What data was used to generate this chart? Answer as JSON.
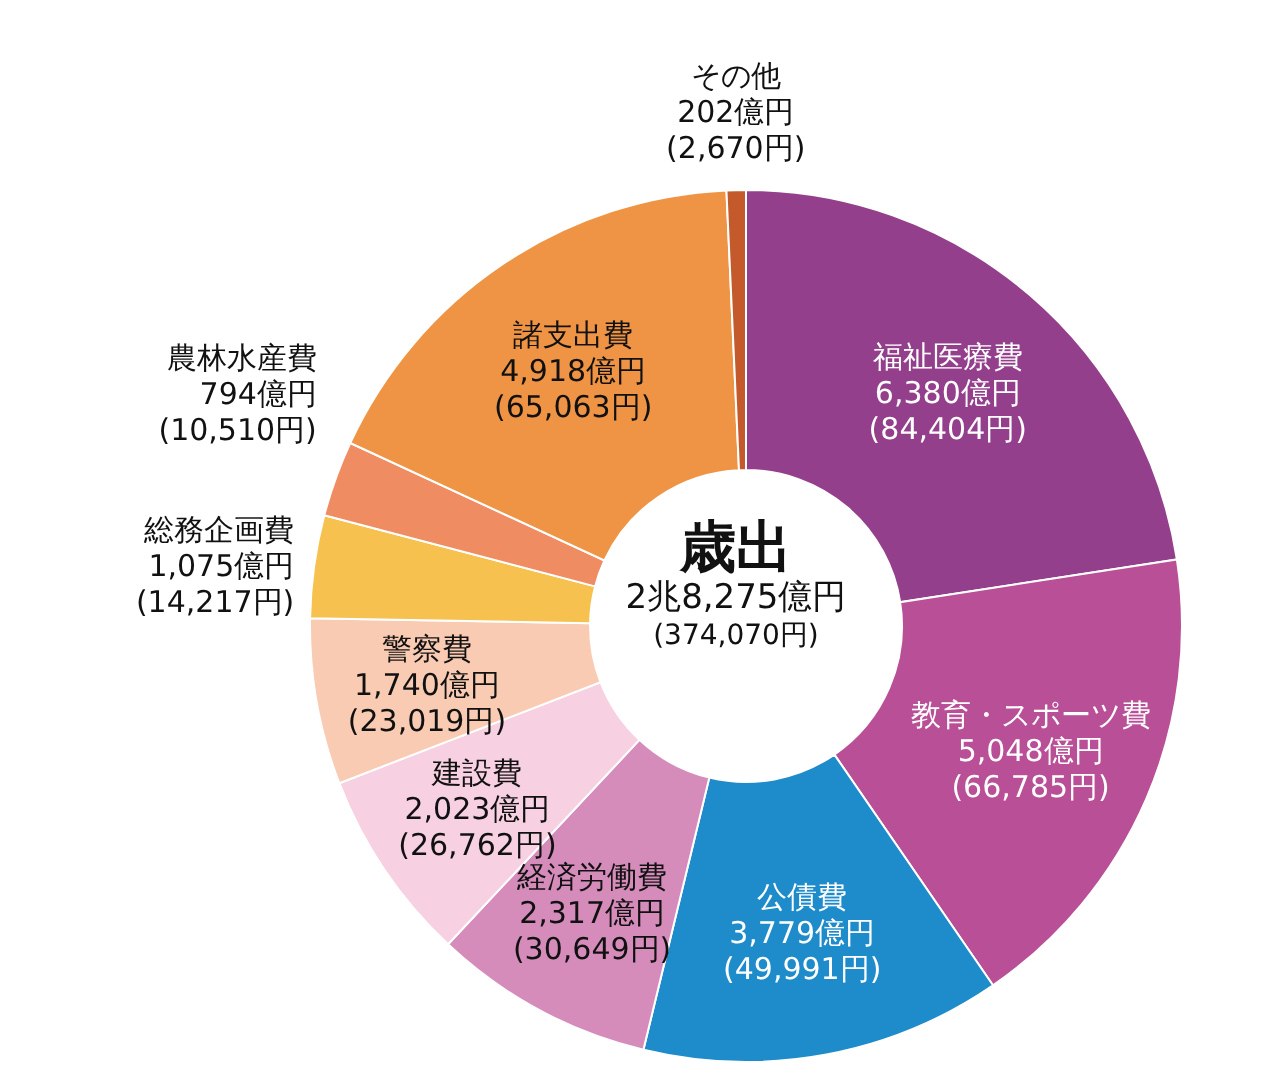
{
  "chart_data": {
    "type": "donut",
    "title": "歳出",
    "subtitle": "2兆8,275億円",
    "annotations": [
      "(374,070円)"
    ],
    "categories": [
      "福祉医療費",
      "教育・スポーツ費",
      "公債費",
      "経済労働費",
      "建設費",
      "警察費",
      "総務企画費",
      "農林水産費",
      "諸支出費",
      "その他"
    ],
    "values": [
      6380,
      5048,
      3779,
      2317,
      2023,
      1740,
      1075,
      794,
      4918,
      202
    ],
    "value_labels": [
      "6,380億円\n(84,404円)",
      "5,048億円\n(66,785円)",
      "3,779億円\n(49,991円)",
      "2,317億円\n(30,649円)",
      "2,023億円\n(26,762円)",
      "1,740億円\n(23,019円)",
      "1,075億円\n(14,217円)",
      "794億円\n(10,510円)",
      "4,918億円\n(65,063円)",
      "202億円\n(2,670円)"
    ],
    "colors": [
      "#943f8c",
      "#b84f97",
      "#1e8bcb",
      "#d58cba",
      "#f7d0e1",
      "#f9cbb3",
      "#f7c14f",
      "#ef8c62",
      "#ef9445",
      "#c45a2b"
    ]
  }
}
